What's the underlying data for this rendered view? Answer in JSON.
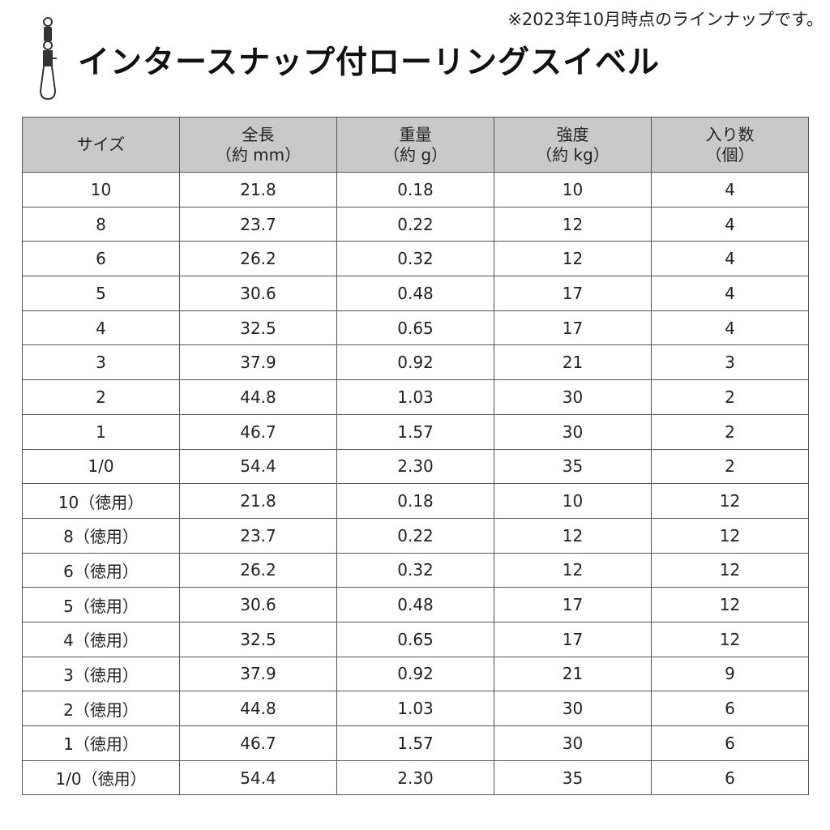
{
  "note": "※2023年10月時点のラインナップです。",
  "title": "インタースナップ付ローリングスイベル",
  "logo_icon": "snap-swivel-icon",
  "colors": {
    "header_bg": "#c9c9c9",
    "border": "#555555"
  },
  "table": {
    "headers": [
      {
        "line1": "サイズ",
        "line2": ""
      },
      {
        "line1": "全長",
        "line2": "（約 mm）"
      },
      {
        "line1": "重量",
        "line2": "（約 g）"
      },
      {
        "line1": "強度",
        "line2": "（約 kg）"
      },
      {
        "line1": "入り数",
        "line2": "（個）"
      }
    ],
    "rows": [
      [
        "10",
        "21.8",
        "0.18",
        "10",
        "4"
      ],
      [
        "8",
        "23.7",
        "0.22",
        "12",
        "4"
      ],
      [
        "6",
        "26.2",
        "0.32",
        "12",
        "4"
      ],
      [
        "5",
        "30.6",
        "0.48",
        "17",
        "4"
      ],
      [
        "4",
        "32.5",
        "0.65",
        "17",
        "4"
      ],
      [
        "3",
        "37.9",
        "0.92",
        "21",
        "3"
      ],
      [
        "2",
        "44.8",
        "1.03",
        "30",
        "2"
      ],
      [
        "1",
        "46.7",
        "1.57",
        "30",
        "2"
      ],
      [
        "1/0",
        "54.4",
        "2.30",
        "35",
        "2"
      ],
      [
        "10（徳用）",
        "21.8",
        "0.18",
        "10",
        "12"
      ],
      [
        "8（徳用）",
        "23.7",
        "0.22",
        "12",
        "12"
      ],
      [
        "6（徳用）",
        "26.2",
        "0.32",
        "12",
        "12"
      ],
      [
        "5（徳用）",
        "30.6",
        "0.48",
        "17",
        "12"
      ],
      [
        "4（徳用）",
        "32.5",
        "0.65",
        "17",
        "12"
      ],
      [
        "3（徳用）",
        "37.9",
        "0.92",
        "21",
        "9"
      ],
      [
        "2（徳用）",
        "44.8",
        "1.03",
        "30",
        "6"
      ],
      [
        "1（徳用）",
        "46.7",
        "1.57",
        "30",
        "6"
      ],
      [
        "1/0（徳用）",
        "54.4",
        "2.30",
        "35",
        "6"
      ]
    ]
  }
}
